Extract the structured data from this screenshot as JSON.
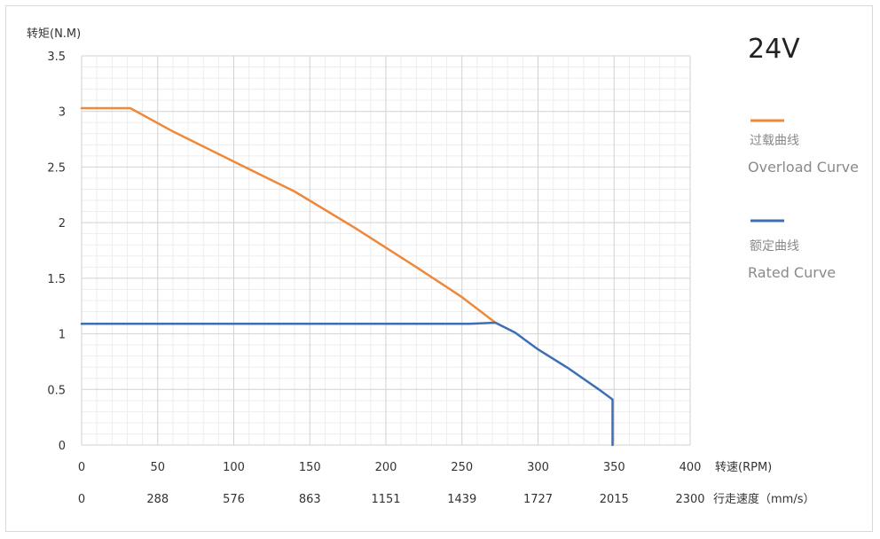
{
  "chart_data": {
    "type": "line",
    "title": "24V",
    "ylabel": "转矩(N.M)",
    "xlabel": "转速(RPM)",
    "x2label": "行走速度（mm/s）",
    "xlim": [
      0,
      400
    ],
    "ylim": [
      0,
      3.5
    ],
    "x_ticks": [
      "0",
      "50",
      "100",
      "150",
      "200",
      "250",
      "300",
      "350",
      "400"
    ],
    "x2_ticks": [
      "0",
      "288",
      "576",
      "863",
      "1151",
      "1439",
      "1727",
      "2015",
      "2300"
    ],
    "y_ticks": [
      "0",
      "0.5",
      "1",
      "1.5",
      "2",
      "2.5",
      "3",
      "3.5"
    ],
    "grid": true,
    "legend_position": "right",
    "series": [
      {
        "name_cn": "过载曲线",
        "name_en": "Overload Curve",
        "color": "#f0883a",
        "points": [
          [
            0,
            3.03
          ],
          [
            32,
            3.03
          ],
          [
            60,
            2.82
          ],
          [
            100,
            2.55
          ],
          [
            140,
            2.28
          ],
          [
            180,
            1.95
          ],
          [
            220,
            1.6
          ],
          [
            250,
            1.33
          ],
          [
            272,
            1.1
          ]
        ]
      },
      {
        "name_cn": "额定曲线",
        "name_en": "Rated Curve",
        "color": "#3e6fb5",
        "points": [
          [
            0,
            1.09
          ],
          [
            255,
            1.09
          ],
          [
            272,
            1.1
          ],
          [
            285,
            1.01
          ],
          [
            300,
            0.86
          ],
          [
            320,
            0.69
          ],
          [
            340,
            0.5
          ],
          [
            349,
            0.41
          ],
          [
            349,
            0
          ]
        ]
      }
    ]
  }
}
